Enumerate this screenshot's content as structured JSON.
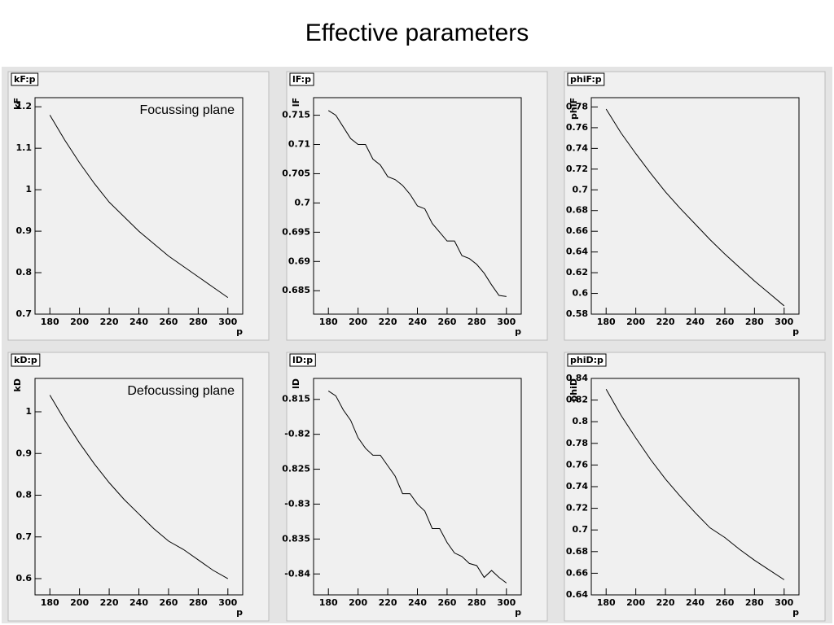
{
  "title": "Effective parameters",
  "chart_data": [
    {
      "type": "line",
      "title": "kF:p",
      "xlabel": "p",
      "ylabel": "kF",
      "annotation": "Focussing plane",
      "color": "#000000",
      "x": [
        180,
        190,
        200,
        210,
        220,
        230,
        240,
        250,
        260,
        270,
        280,
        290,
        300
      ],
      "values": [
        1.18,
        1.12,
        1.065,
        1.015,
        0.97,
        0.935,
        0.9,
        0.87,
        0.84,
        0.815,
        0.79,
        0.765,
        0.74
      ],
      "xlim": [
        170,
        310
      ],
      "ylim": [
        0.7,
        1.222
      ],
      "xticks": [
        180,
        200,
        220,
        240,
        260,
        280,
        300
      ],
      "yticks": [
        0.7,
        0.8,
        0.9,
        1,
        1.1,
        1.2
      ]
    },
    {
      "type": "line",
      "title": "lF:p",
      "xlabel": "p",
      "ylabel": "lF",
      "color": "#000000",
      "x": [
        180,
        185,
        190,
        195,
        200,
        205,
        210,
        215,
        220,
        225,
        230,
        235,
        240,
        245,
        250,
        255,
        260,
        265,
        270,
        275,
        280,
        285,
        290,
        295,
        300
      ],
      "values": [
        0.7158,
        0.715,
        0.713,
        0.711,
        0.71,
        0.71,
        0.7075,
        0.7065,
        0.7045,
        0.704,
        0.703,
        0.7015,
        0.6995,
        0.699,
        0.6965,
        0.695,
        0.6935,
        0.6935,
        0.691,
        0.6905,
        0.6895,
        0.688,
        0.686,
        0.6842,
        0.684
      ],
      "xlim": [
        170,
        310
      ],
      "ylim": [
        0.681,
        0.718
      ],
      "xticks": [
        180,
        200,
        220,
        240,
        260,
        280,
        300
      ],
      "yticks": [
        0.685,
        0.69,
        0.695,
        0.7,
        0.705,
        0.71,
        0.715
      ]
    },
    {
      "type": "line",
      "title": "phiF:p",
      "xlabel": "p",
      "ylabel": "phiF",
      "color": "#000000",
      "x": [
        180,
        190,
        200,
        210,
        220,
        230,
        240,
        250,
        260,
        270,
        280,
        290,
        300
      ],
      "values": [
        0.778,
        0.755,
        0.735,
        0.716,
        0.698,
        0.682,
        0.667,
        0.652,
        0.638,
        0.625,
        0.612,
        0.6,
        0.588
      ],
      "xlim": [
        170,
        310
      ],
      "ylim": [
        0.58,
        0.789
      ],
      "xticks": [
        180,
        200,
        220,
        240,
        260,
        280,
        300
      ],
      "yticks": [
        0.58,
        0.6,
        0.62,
        0.64,
        0.66,
        0.68,
        0.7,
        0.72,
        0.74,
        0.76,
        0.78
      ]
    },
    {
      "type": "line",
      "title": "kD:p",
      "xlabel": "p",
      "ylabel": "kD",
      "annotation": "Defocussing plane",
      "color": "#000000",
      "x": [
        180,
        190,
        200,
        210,
        220,
        230,
        240,
        250,
        260,
        270,
        280,
        290,
        300
      ],
      "values": [
        1.04,
        0.98,
        0.925,
        0.875,
        0.83,
        0.79,
        0.755,
        0.72,
        0.69,
        0.67,
        0.645,
        0.62,
        0.6
      ],
      "xlim": [
        170,
        310
      ],
      "ylim": [
        0.561,
        1.08
      ],
      "xticks": [
        180,
        200,
        220,
        240,
        260,
        280,
        300
      ],
      "yticks": [
        0.6,
        0.7,
        0.8,
        0.9,
        1
      ]
    },
    {
      "type": "line",
      "title": "lD:p",
      "xlabel": "p",
      "ylabel": "lD",
      "color": "#000000",
      "x": [
        180,
        185,
        190,
        195,
        200,
        205,
        210,
        215,
        220,
        225,
        230,
        235,
        240,
        245,
        250,
        255,
        260,
        265,
        270,
        275,
        280,
        285,
        290,
        295,
        300
      ],
      "values": [
        -0.8138,
        -0.8145,
        -0.8165,
        -0.818,
        -0.8205,
        -0.822,
        -0.823,
        -0.823,
        -0.8245,
        -0.826,
        -0.8285,
        -0.8285,
        -0.83,
        -0.831,
        -0.8335,
        -0.8335,
        -0.8355,
        -0.837,
        -0.8375,
        -0.8385,
        -0.8388,
        -0.8405,
        -0.8395,
        -0.8405,
        -0.8413
      ],
      "xlim": [
        170,
        310
      ],
      "ylim": [
        -0.843,
        -0.812
      ],
      "xticks": [
        180,
        200,
        220,
        240,
        260,
        280,
        300
      ],
      "yticks": [
        {
          "value": -0.815,
          "label": "0.815"
        },
        -0.82,
        {
          "value": -0.825,
          "label": "0.825"
        },
        -0.83,
        {
          "value": -0.835,
          "label": "0.835"
        },
        -0.84
      ]
    },
    {
      "type": "line",
      "title": "phiD:p",
      "xlabel": "p",
      "ylabel": "phiD",
      "color": "#000000",
      "x": [
        180,
        190,
        200,
        210,
        220,
        230,
        240,
        250,
        260,
        270,
        280,
        290,
        300
      ],
      "values": [
        0.83,
        0.806,
        0.785,
        0.765,
        0.747,
        0.731,
        0.716,
        0.702,
        0.693,
        0.682,
        0.672,
        0.663,
        0.654
      ],
      "xlim": [
        170,
        310
      ],
      "ylim": [
        0.64,
        0.84
      ],
      "xticks": [
        180,
        200,
        220,
        240,
        260,
        280,
        300
      ],
      "yticks": [
        0.64,
        0.66,
        0.68,
        0.7,
        0.72,
        0.74,
        0.76,
        0.78,
        0.8,
        0.82,
        0.84
      ]
    }
  ]
}
